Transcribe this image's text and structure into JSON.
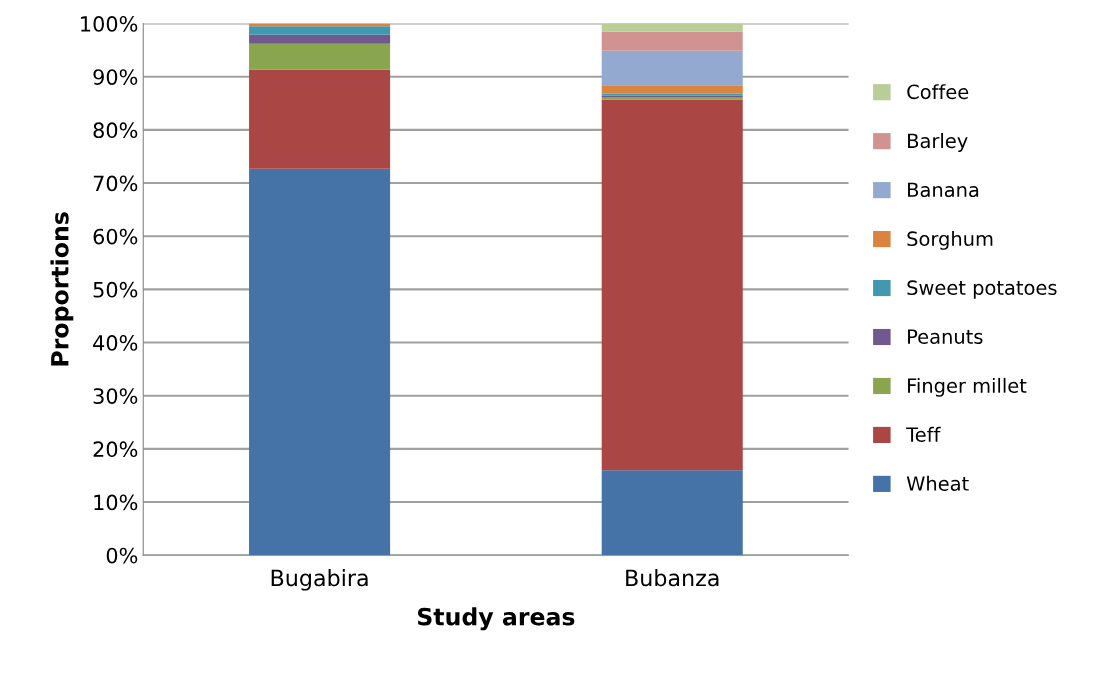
{
  "chart_data": {
    "type": "bar",
    "stacked": true,
    "xlabel": "Study areas",
    "ylabel": "Proportions",
    "categories": [
      "Bugabira",
      "Bubanza"
    ],
    "series": [
      {
        "name": "Wheat",
        "color": "#4572a7",
        "values": [
          72.7,
          16.0
        ]
      },
      {
        "name": "Teff",
        "color": "#aa4643",
        "values": [
          18.6,
          69.7
        ]
      },
      {
        "name": "Finger millet",
        "color": "#89a54e",
        "values": [
          4.9,
          0.5
        ]
      },
      {
        "name": "Peanuts",
        "color": "#71588f",
        "values": [
          1.7,
          0.2
        ]
      },
      {
        "name": "Sweet potatoes",
        "color": "#4198af",
        "values": [
          1.6,
          0.4
        ]
      },
      {
        "name": "Sorghum",
        "color": "#db843d",
        "values": [
          0.5,
          1.6
        ]
      },
      {
        "name": "Banana",
        "color": "#93a9cf",
        "values": [
          0,
          6.5
        ]
      },
      {
        "name": "Barley",
        "color": "#d19392",
        "values": [
          0,
          3.6
        ]
      },
      {
        "name": "Coffee",
        "color": "#b9cd96",
        "values": [
          0,
          1.5
        ]
      }
    ],
    "ylim": [
      0,
      100
    ],
    "yticks": [
      {
        "value": 0,
        "label": "0%"
      },
      {
        "value": 10,
        "label": "10%"
      },
      {
        "value": 20,
        "label": "20%"
      },
      {
        "value": 30,
        "label": "30%"
      },
      {
        "value": 40,
        "label": "40%"
      },
      {
        "value": 50,
        "label": "50%"
      },
      {
        "value": 60,
        "label": "60%"
      },
      {
        "value": 70,
        "label": "70%"
      },
      {
        "value": 80,
        "label": "80%"
      },
      {
        "value": 90,
        "label": "90%"
      },
      {
        "value": 100,
        "label": "100%"
      }
    ],
    "grid": "y",
    "legend": "right"
  }
}
